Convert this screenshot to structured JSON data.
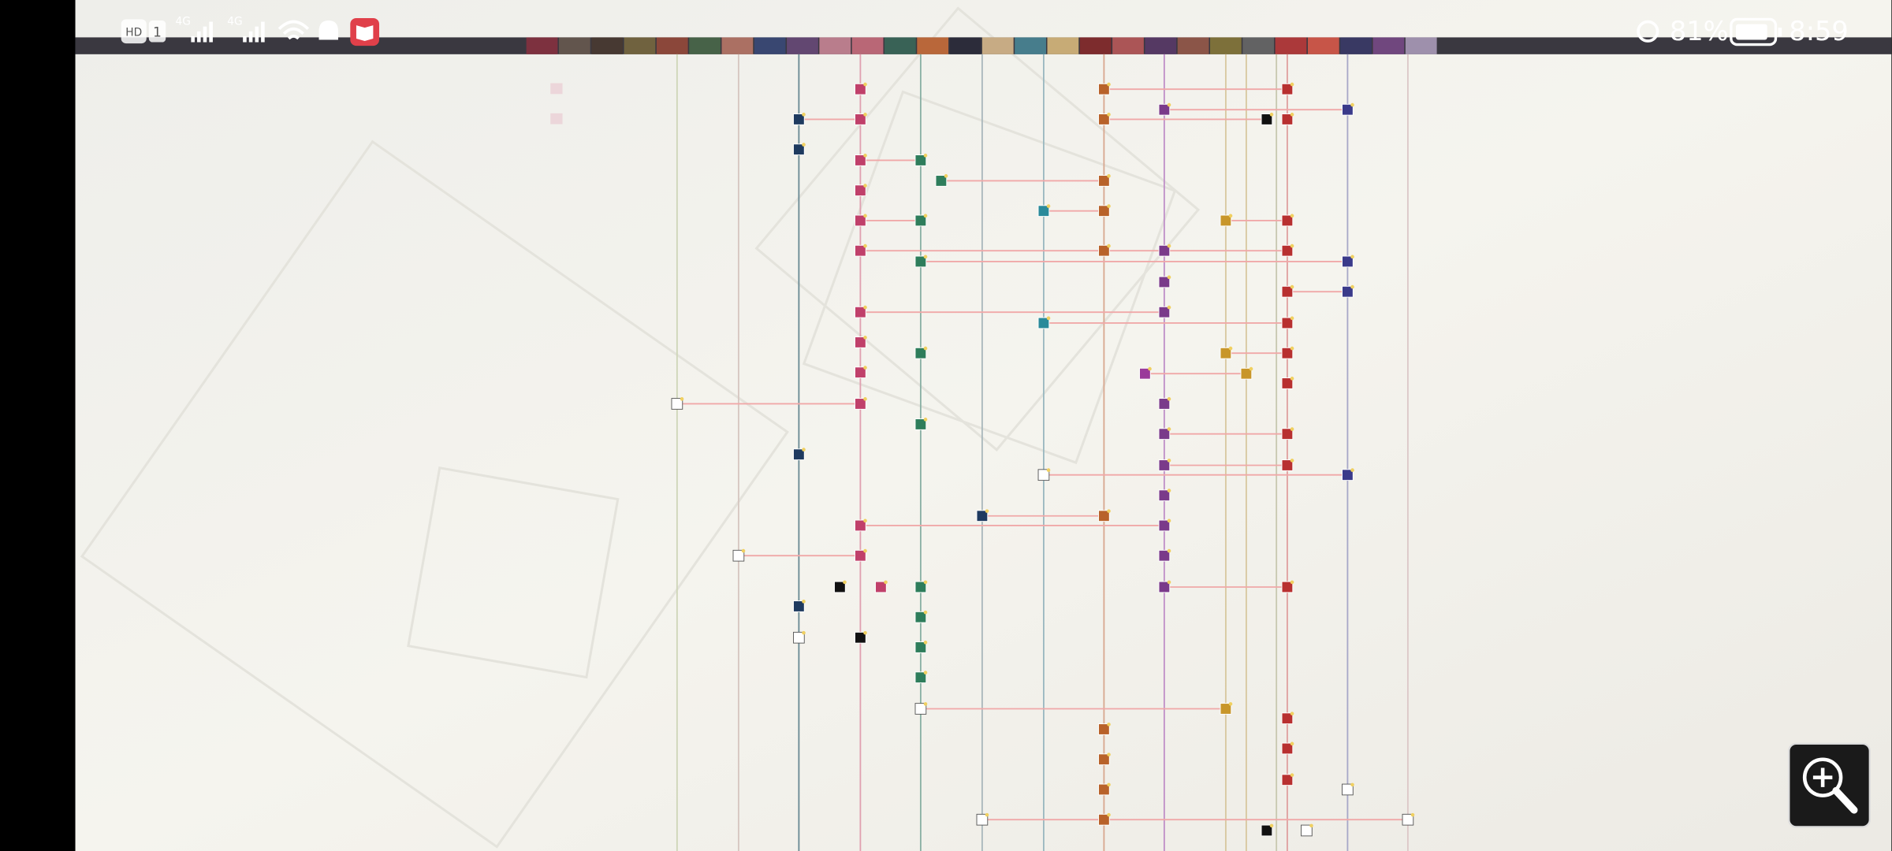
{
  "status_bar": {
    "hd": "HD",
    "sim": "1",
    "net1": "4G",
    "net2": "4G",
    "battery": "81%",
    "time": "8:59"
  }
}
